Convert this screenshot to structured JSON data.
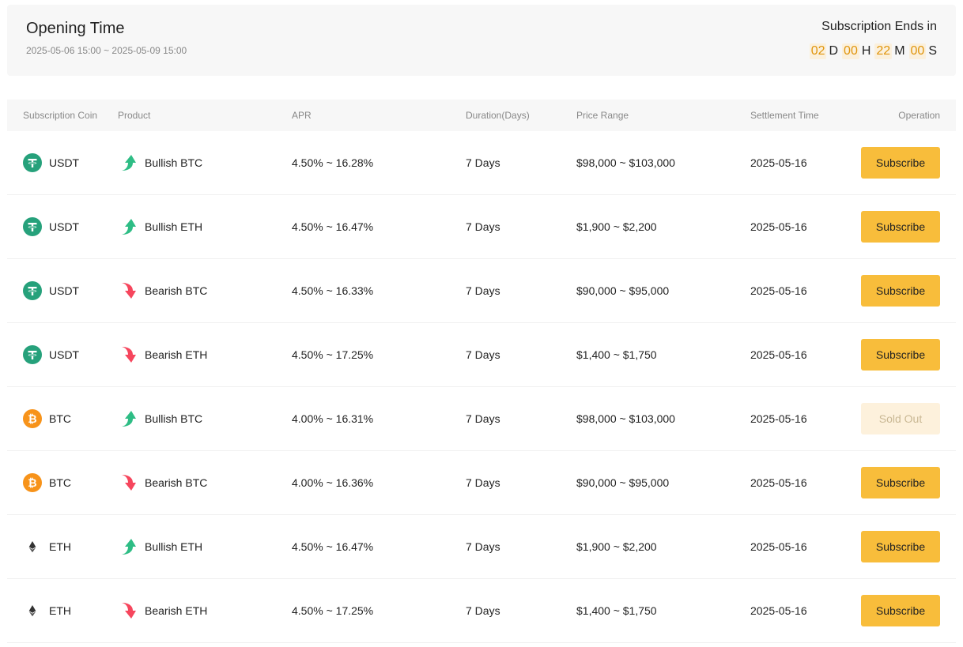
{
  "header": {
    "title": "Opening Time",
    "range": "2025-05-06 15:00 ~ 2025-05-09 15:00",
    "ends_label": "Subscription Ends in",
    "countdown": {
      "days": "02",
      "d": "D",
      "hours": "00",
      "h": "H",
      "minutes": "22",
      "m": "M",
      "seconds": "00",
      "s": "S"
    }
  },
  "colors": {
    "accent": "#f8bd3b",
    "bull": "#2ebd85",
    "bear": "#f6465d",
    "usdt": "#26a17b",
    "btc": "#f7931a"
  },
  "columns": [
    "Subscription Coin",
    "Product",
    "APR",
    "Duration(Days)",
    "Price Range",
    "Settlement Time",
    "Operation"
  ],
  "rows": [
    {
      "coin": "USDT",
      "coin_icon": "usdt-icon",
      "direction": "bull",
      "product": "Bullish BTC",
      "apr": "4.50% ~ 16.28%",
      "duration": "7 Days",
      "price": "$98,000 ~ $103,000",
      "settle": "2025-05-16",
      "op": "Subscribe",
      "sold": false
    },
    {
      "coin": "USDT",
      "coin_icon": "usdt-icon",
      "direction": "bull",
      "product": "Bullish ETH",
      "apr": "4.50% ~ 16.47%",
      "duration": "7 Days",
      "price": "$1,900 ~ $2,200",
      "settle": "2025-05-16",
      "op": "Subscribe",
      "sold": false
    },
    {
      "coin": "USDT",
      "coin_icon": "usdt-icon",
      "direction": "bear",
      "product": "Bearish BTC",
      "apr": "4.50% ~ 16.33%",
      "duration": "7 Days",
      "price": "$90,000 ~ $95,000",
      "settle": "2025-05-16",
      "op": "Subscribe",
      "sold": false
    },
    {
      "coin": "USDT",
      "coin_icon": "usdt-icon",
      "direction": "bear",
      "product": "Bearish ETH",
      "apr": "4.50% ~ 17.25%",
      "duration": "7 Days",
      "price": "$1,400 ~ $1,750",
      "settle": "2025-05-16",
      "op": "Subscribe",
      "sold": false
    },
    {
      "coin": "BTC",
      "coin_icon": "btc-icon",
      "direction": "bull",
      "product": "Bullish BTC",
      "apr": "4.00% ~ 16.31%",
      "duration": "7 Days",
      "price": "$98,000 ~ $103,000",
      "settle": "2025-05-16",
      "op": "Sold Out",
      "sold": true
    },
    {
      "coin": "BTC",
      "coin_icon": "btc-icon",
      "direction": "bear",
      "product": "Bearish BTC",
      "apr": "4.00% ~ 16.36%",
      "duration": "7 Days",
      "price": "$90,000 ~ $95,000",
      "settle": "2025-05-16",
      "op": "Subscribe",
      "sold": false
    },
    {
      "coin": "ETH",
      "coin_icon": "eth-icon",
      "direction": "bull",
      "product": "Bullish ETH",
      "apr": "4.50% ~ 16.47%",
      "duration": "7 Days",
      "price": "$1,900 ~ $2,200",
      "settle": "2025-05-16",
      "op": "Subscribe",
      "sold": false
    },
    {
      "coin": "ETH",
      "coin_icon": "eth-icon",
      "direction": "bear",
      "product": "Bearish ETH",
      "apr": "4.50% ~ 17.25%",
      "duration": "7 Days",
      "price": "$1,400 ~ $1,750",
      "settle": "2025-05-16",
      "op": "Subscribe",
      "sold": false
    }
  ]
}
